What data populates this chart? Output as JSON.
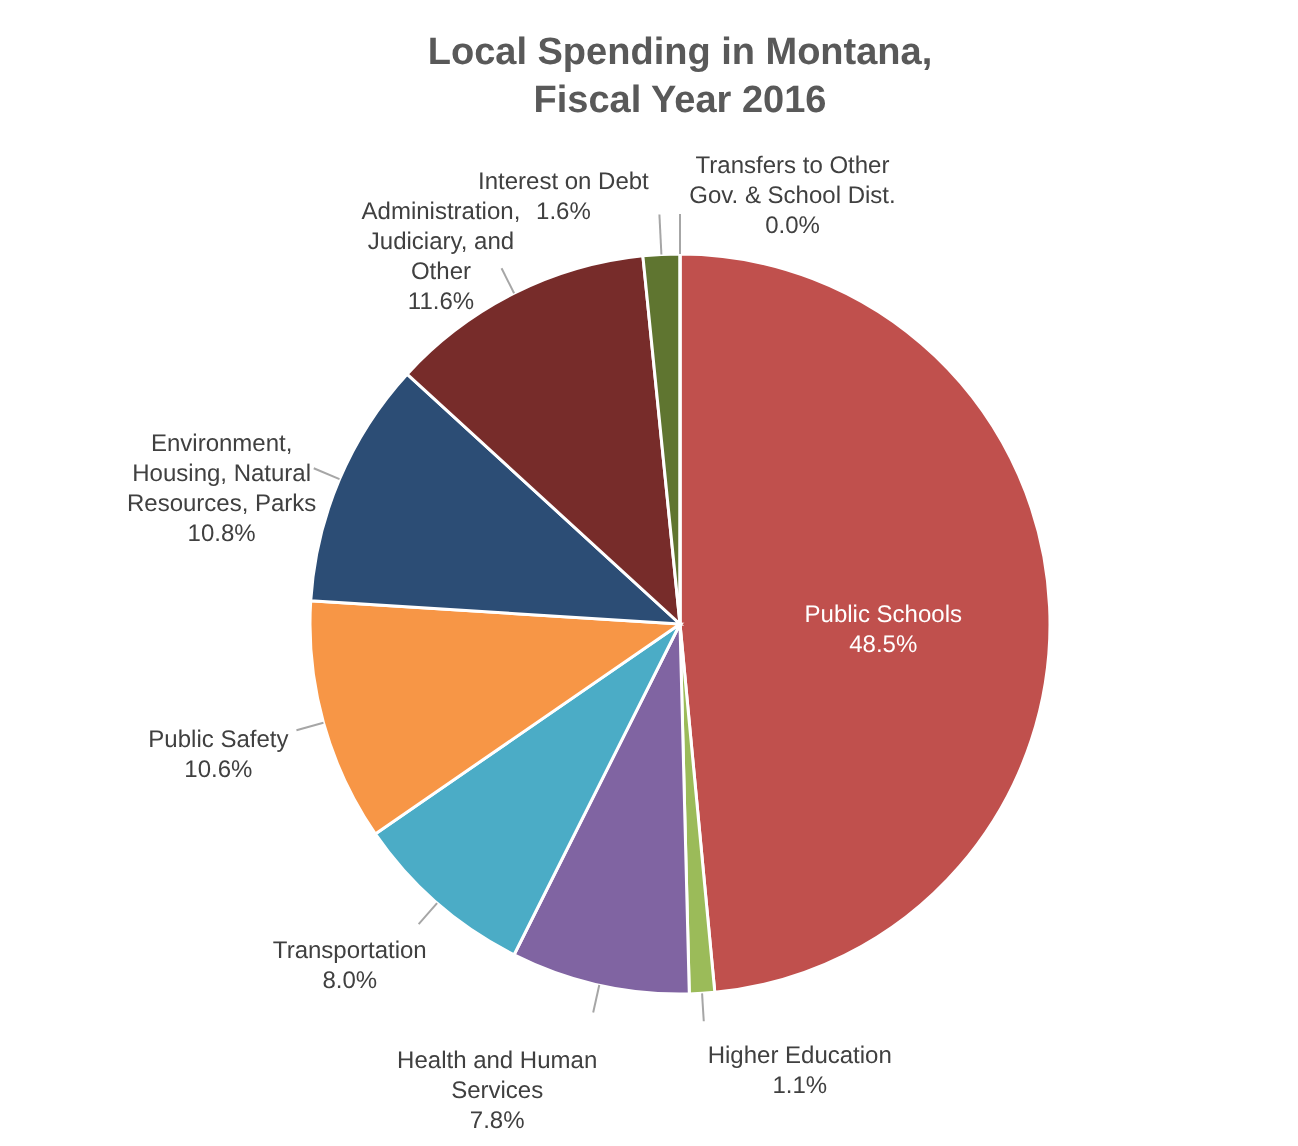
{
  "chart_data": {
    "type": "pie",
    "title": "Local Spending in Montana, Fiscal Year 2016",
    "categories": [
      "Public Schools",
      "Higher Education",
      "Health and Human Services",
      "Transportation",
      "Public Safety",
      "Environment, Housing, Natural Resources, Parks",
      "Administration, Judiciary, and Other",
      "Interest on Debt",
      "Transfers to Other Gov. & School Dist."
    ],
    "values": [
      48.5,
      1.1,
      7.8,
      8.0,
      10.6,
      10.8,
      11.6,
      1.6,
      0.0
    ],
    "value_labels": [
      "48.5%",
      "1.1%",
      "7.8%",
      "8.0%",
      "10.6%",
      "10.8%",
      "11.6%",
      "1.6%",
      "0.0%"
    ],
    "colors": [
      "#c0504d",
      "#9bbb59",
      "#8064a2",
      "#4bacc6",
      "#f79646",
      "#2c4d75",
      "#772c2a",
      "#5f7530",
      "#4f81bd"
    ]
  }
}
